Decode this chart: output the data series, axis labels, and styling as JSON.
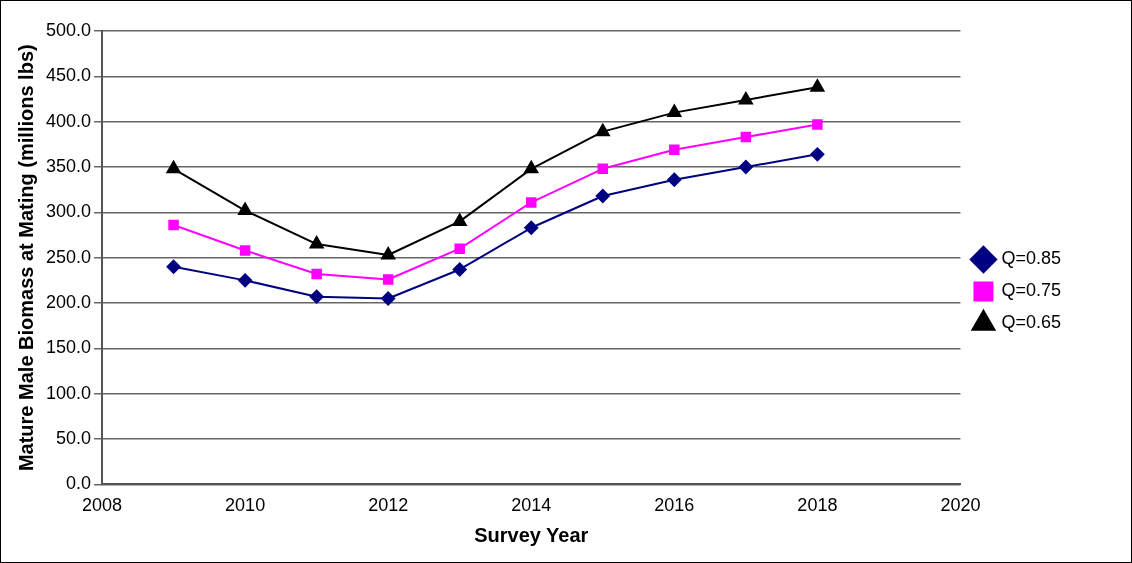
{
  "chart_data": {
    "type": "line",
    "xlabel": "Survey Year",
    "ylabel": "Mature Male Biomass at Mating (millions lbs)",
    "x": [
      2009,
      2010,
      2011,
      2012,
      2013,
      2014,
      2015,
      2016,
      2017,
      2018
    ],
    "series": [
      {
        "name": "Q=0.85",
        "color": "#000080",
        "marker": "diamond",
        "values": [
          240,
          225,
          207,
          205,
          237,
          283,
          318,
          336,
          350,
          364
        ]
      },
      {
        "name": "Q=0.75",
        "color": "#ff00ff",
        "marker": "square",
        "values": [
          286,
          258,
          232,
          226,
          260,
          311,
          348,
          369,
          383,
          397
        ]
      },
      {
        "name": "Q=0.65",
        "color": "#000000",
        "marker": "triangle",
        "values": [
          348,
          302,
          265,
          253,
          290,
          348,
          389,
          410,
          424,
          438
        ]
      }
    ],
    "xlim": [
      2008,
      2020
    ],
    "xticks": [
      2008,
      2010,
      2012,
      2014,
      2016,
      2018,
      2020
    ],
    "ylim": [
      0,
      500
    ],
    "yticks": [
      {
        "value": 0,
        "label": "0.0"
      },
      {
        "value": 50,
        "label": "50.0"
      },
      {
        "value": 100,
        "label": "100.0"
      },
      {
        "value": 150,
        "label": "150.0"
      },
      {
        "value": 200,
        "label": "200.0"
      },
      {
        "value": 250,
        "label": "250.0"
      },
      {
        "value": 300,
        "label": "300.0"
      },
      {
        "value": 350,
        "label": "350.0"
      },
      {
        "value": 400,
        "label": "400.0"
      },
      {
        "value": 450,
        "label": "450.0"
      },
      {
        "value": 500,
        "label": "500.0"
      }
    ],
    "grid": "y",
    "legend": "right"
  }
}
